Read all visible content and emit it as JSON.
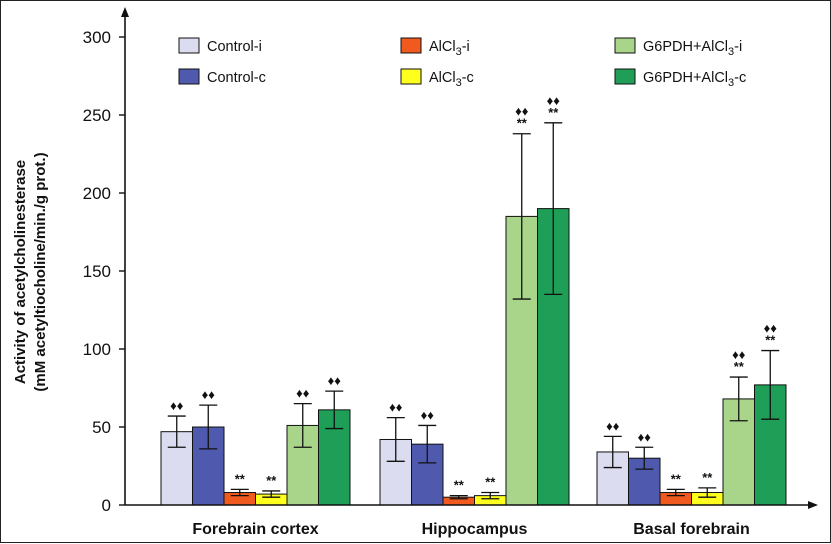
{
  "chart_data": {
    "type": "bar",
    "ylabel_line1": "Activity of acetylcholinesterase",
    "ylabel_line2": "(mM acetyltiocholine/min./g prot.)",
    "ylim": [
      0,
      300
    ],
    "yticks": [
      "0",
      "50",
      "100",
      "150",
      "200",
      "250",
      "300"
    ],
    "categories": [
      "Forebrain cortex",
      "Hippocampus",
      "Basal forebrain"
    ],
    "legend_position": "top",
    "series": [
      {
        "name": "Control-i",
        "color": "#dcdcf0",
        "values": [
          47,
          42,
          34
        ],
        "errors": [
          10,
          14,
          10
        ],
        "marks": [
          "♦♦",
          "♦♦",
          "♦♦"
        ]
      },
      {
        "name": "Control-c",
        "color": "#4f5aae",
        "values": [
          50,
          39,
          30
        ],
        "errors": [
          14,
          12,
          7
        ],
        "marks": [
          "♦♦",
          "♦♦",
          "♦♦"
        ]
      },
      {
        "name": "AlCl3-i",
        "name_main": "AlCl",
        "name_sub": "3",
        "name_rest": "-i",
        "color": "#f05a1e",
        "values": [
          8,
          5,
          8
        ],
        "errors": [
          2,
          1,
          2
        ],
        "marks": [
          "**",
          "**",
          "**"
        ]
      },
      {
        "name": "AlCl3-c",
        "name_main": "AlCl",
        "name_sub": "3",
        "name_rest": "-c",
        "color": "#ffff1e",
        "values": [
          7,
          6,
          8
        ],
        "errors": [
          2,
          2,
          3
        ],
        "marks": [
          "**",
          "**",
          "**"
        ]
      },
      {
        "name": "G6PDH+AlCl3-i",
        "name_main": "G6PDH+AlCl",
        "name_sub": "3",
        "name_rest": "-i",
        "color": "#a8d58a",
        "values": [
          51,
          185,
          68
        ],
        "errors": [
          14,
          53,
          14
        ],
        "marks": [
          "♦♦",
          "♦♦\n**",
          "♦♦\n**"
        ]
      },
      {
        "name": "G6PDH+AlCl3-c",
        "name_main": "G6PDH+AlCl",
        "name_sub": "3",
        "name_rest": "-c",
        "color": "#1f9e58",
        "values": [
          61,
          190,
          77
        ],
        "errors": [
          12,
          55,
          22
        ],
        "marks": [
          "♦♦",
          "♦♦\n**",
          "♦♦\n**"
        ]
      }
    ]
  }
}
